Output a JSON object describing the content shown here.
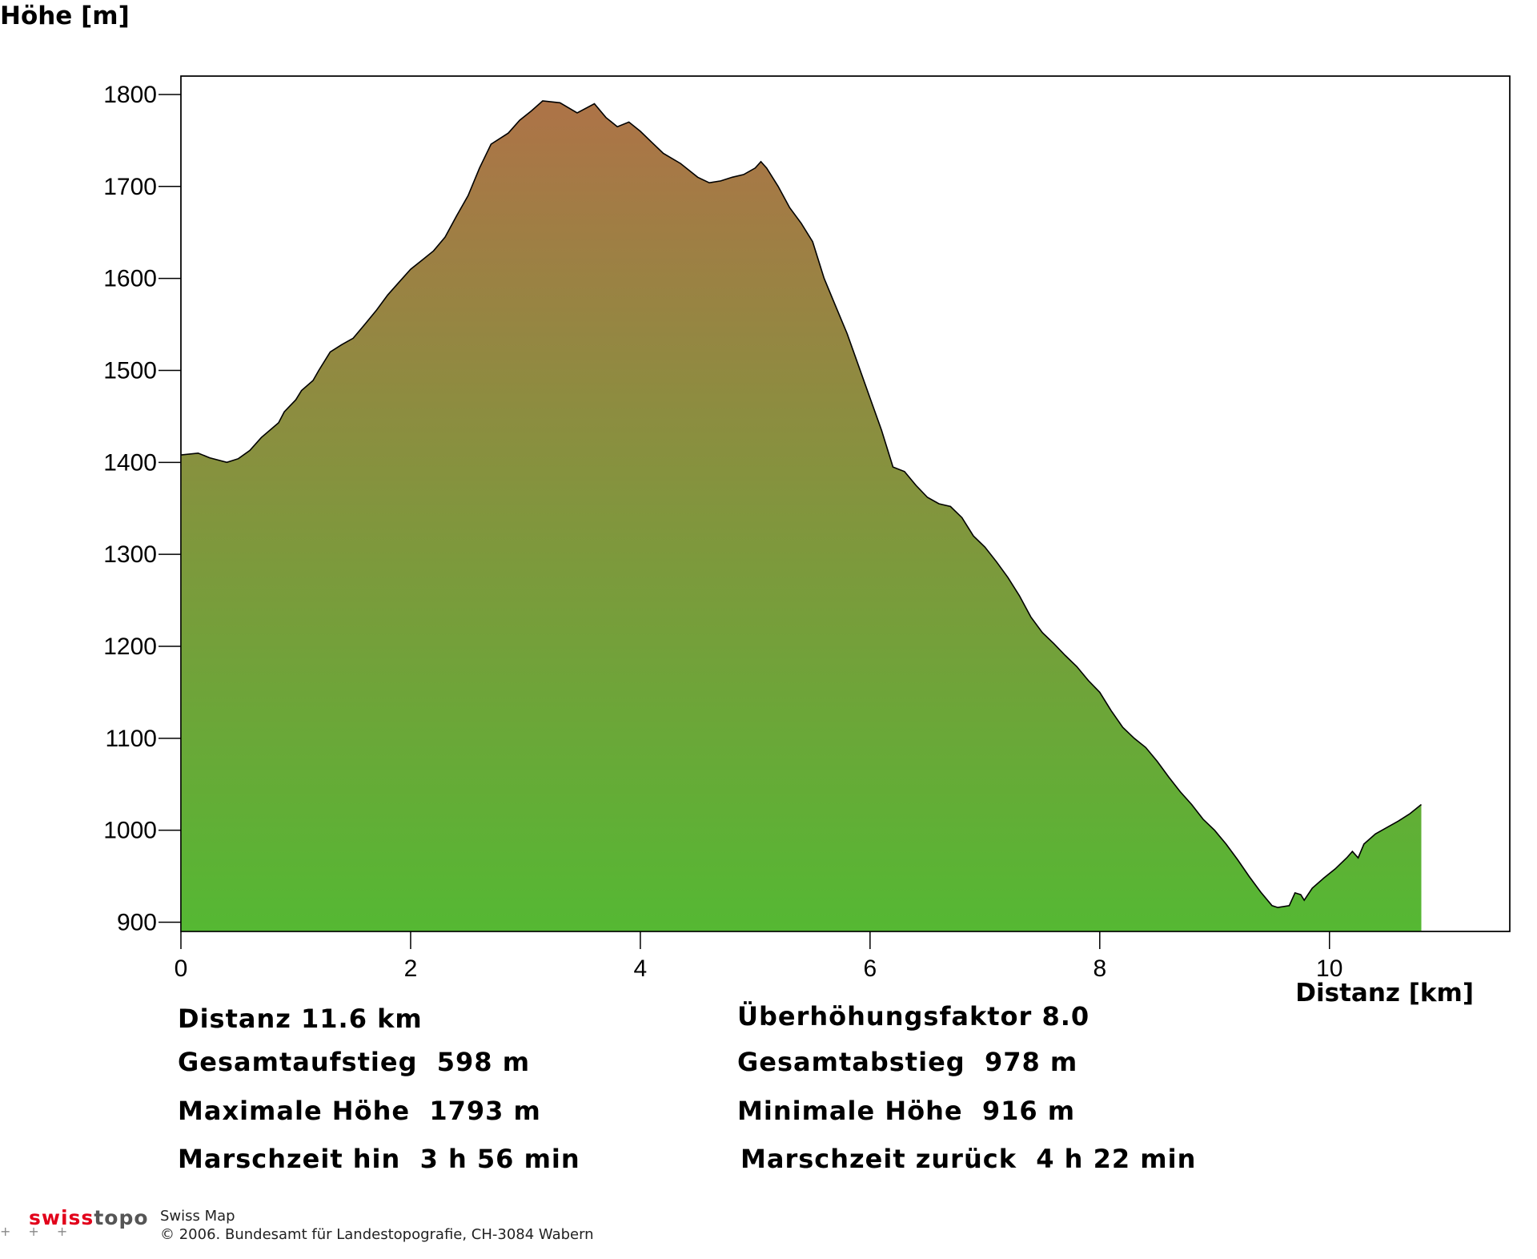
{
  "chart_data": {
    "type": "area",
    "ylabel": "Höhe [m]",
    "xlabel": "Distanz [km]",
    "xlim": [
      0,
      11.57
    ],
    "ylim": [
      890,
      1820
    ],
    "x_ticks": [
      0,
      2,
      4,
      6,
      8,
      10
    ],
    "y_ticks": [
      900,
      1000,
      1100,
      1200,
      1300,
      1400,
      1500,
      1600,
      1700,
      1800
    ],
    "grid": false,
    "fill_gradient": {
      "top": "#b07148",
      "bottom": "#55b833"
    },
    "points": [
      [
        0.0,
        1408
      ],
      [
        0.15,
        1410
      ],
      [
        0.25,
        1405
      ],
      [
        0.4,
        1400
      ],
      [
        0.5,
        1404
      ],
      [
        0.6,
        1413
      ],
      [
        0.7,
        1427
      ],
      [
        0.85,
        1443
      ],
      [
        0.9,
        1455
      ],
      [
        1.0,
        1468
      ],
      [
        1.05,
        1478
      ],
      [
        1.15,
        1489
      ],
      [
        1.2,
        1500
      ],
      [
        1.3,
        1520
      ],
      [
        1.4,
        1528
      ],
      [
        1.5,
        1535
      ],
      [
        1.6,
        1550
      ],
      [
        1.7,
        1565
      ],
      [
        1.8,
        1582
      ],
      [
        1.9,
        1596
      ],
      [
        2.0,
        1610
      ],
      [
        2.1,
        1620
      ],
      [
        2.2,
        1630
      ],
      [
        2.3,
        1645
      ],
      [
        2.4,
        1668
      ],
      [
        2.5,
        1690
      ],
      [
        2.6,
        1720
      ],
      [
        2.7,
        1746
      ],
      [
        2.85,
        1758
      ],
      [
        2.95,
        1772
      ],
      [
        3.05,
        1782
      ],
      [
        3.15,
        1793
      ],
      [
        3.3,
        1791
      ],
      [
        3.45,
        1780
      ],
      [
        3.6,
        1790
      ],
      [
        3.7,
        1775
      ],
      [
        3.8,
        1765
      ],
      [
        3.9,
        1770
      ],
      [
        4.0,
        1760
      ],
      [
        4.1,
        1748
      ],
      [
        4.2,
        1736
      ],
      [
        4.35,
        1725
      ],
      [
        4.5,
        1710
      ],
      [
        4.6,
        1704
      ],
      [
        4.7,
        1706
      ],
      [
        4.8,
        1710
      ],
      [
        4.9,
        1713
      ],
      [
        5.0,
        1720
      ],
      [
        5.05,
        1727
      ],
      [
        5.1,
        1720
      ],
      [
        5.2,
        1700
      ],
      [
        5.3,
        1677
      ],
      [
        5.4,
        1660
      ],
      [
        5.5,
        1640
      ],
      [
        5.6,
        1600
      ],
      [
        5.7,
        1570
      ],
      [
        5.8,
        1540
      ],
      [
        5.9,
        1505
      ],
      [
        6.0,
        1470
      ],
      [
        6.1,
        1435
      ],
      [
        6.2,
        1395
      ],
      [
        6.3,
        1390
      ],
      [
        6.4,
        1375
      ],
      [
        6.5,
        1362
      ],
      [
        6.6,
        1355
      ],
      [
        6.7,
        1352
      ],
      [
        6.8,
        1340
      ],
      [
        6.9,
        1320
      ],
      [
        7.0,
        1308
      ],
      [
        7.1,
        1292
      ],
      [
        7.2,
        1275
      ],
      [
        7.3,
        1255
      ],
      [
        7.4,
        1232
      ],
      [
        7.5,
        1215
      ],
      [
        7.6,
        1203
      ],
      [
        7.7,
        1190
      ],
      [
        7.8,
        1178
      ],
      [
        7.9,
        1163
      ],
      [
        8.0,
        1150
      ],
      [
        8.1,
        1130
      ],
      [
        8.2,
        1112
      ],
      [
        8.3,
        1100
      ],
      [
        8.4,
        1090
      ],
      [
        8.5,
        1075
      ],
      [
        8.6,
        1058
      ],
      [
        8.7,
        1042
      ],
      [
        8.8,
        1028
      ],
      [
        8.9,
        1012
      ],
      [
        9.0,
        1000
      ],
      [
        9.1,
        985
      ],
      [
        9.2,
        968
      ],
      [
        9.3,
        950
      ],
      [
        9.4,
        933
      ],
      [
        9.5,
        918
      ],
      [
        9.55,
        916
      ],
      [
        9.65,
        918
      ],
      [
        9.7,
        932
      ],
      [
        9.75,
        930
      ],
      [
        9.78,
        924
      ],
      [
        9.85,
        937
      ],
      [
        9.95,
        948
      ],
      [
        10.05,
        958
      ],
      [
        10.15,
        970
      ],
      [
        10.2,
        977
      ],
      [
        10.25,
        970
      ],
      [
        10.3,
        985
      ],
      [
        10.4,
        996
      ],
      [
        10.5,
        1003
      ],
      [
        10.6,
        1010
      ],
      [
        10.7,
        1018
      ],
      [
        10.8,
        1028
      ]
    ]
  },
  "stats": {
    "distance": "Distanz 11.6 km",
    "exaggeration": "Überhöhungsfaktor 8.0",
    "ascent": "Gesamtaufstieg  598 m",
    "descent": "Gesamtabstieg  978 m",
    "max_height": "Maximale Höhe  1793 m",
    "min_height": "Minimale Höhe  916 m",
    "time_there": "Marschzeit hin  3 h 56 min",
    "time_back": "Marschzeit zurück  4 h 22 min"
  },
  "footer": {
    "logo_swiss": "swiss",
    "logo_topo": "topo",
    "product": "Swiss Map",
    "copyright": "© 2006. Bundesamt für Landestopografie, CH-3084 Wabern"
  }
}
